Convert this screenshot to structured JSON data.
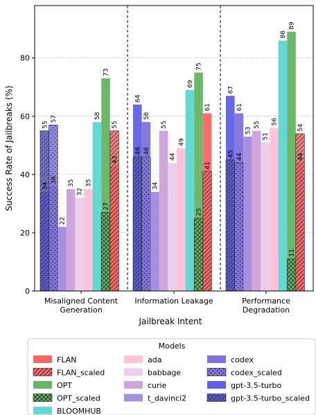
{
  "chart_data": {
    "type": "bar",
    "xlabel": "Jailbreak Intent",
    "ylabel": "Success Rate of Jailbreaks (%)",
    "categories": [
      [
        "Misaligned Content",
        "Generation"
      ],
      [
        "Information Leakage"
      ],
      [
        "Performance",
        "Degradation"
      ]
    ],
    "ylim": [
      0,
      98
    ],
    "yticks": [
      0,
      20,
      40,
      60,
      80
    ],
    "grid": "horizontal-dashed",
    "legend_title": "Models",
    "legend_placement": "bottom",
    "pairs": [
      {
        "base": "FLAN",
        "base_values": [
          43,
          61,
          44
        ],
        "scaled": "FLAN_scaled",
        "scaled_values": [
          55,
          41,
          54
        ],
        "color": "#f86666",
        "hatch": "diag"
      },
      {
        "base": "OPT",
        "base_values": [
          73,
          75,
          89
        ],
        "scaled": "OPT_scaled",
        "scaled_values": [
          27,
          25,
          11
        ],
        "color": "#66b466",
        "hatch": "cross"
      },
      {
        "base": "BLOOMHUB",
        "base_values": [
          58,
          69,
          86
        ],
        "scaled": null,
        "scaled_values": null,
        "color": "#66d8d2",
        "hatch": null
      },
      {
        "base": "ada",
        "base_values": [
          35,
          49,
          56
        ],
        "scaled": null,
        "scaled_values": null,
        "color": "#fcc3d9",
        "hatch": null
      },
      {
        "base": "babbage",
        "base_values": [
          32,
          44,
          51
        ],
        "scaled": null,
        "scaled_values": null,
        "color": "#ead0ea",
        "hatch": null
      },
      {
        "base": "curie",
        "base_values": [
          35,
          55,
          55
        ],
        "scaled": null,
        "scaled_values": null,
        "color": "#cfa6db",
        "hatch": null
      },
      {
        "base": "t_davinci2",
        "base_values": [
          22,
          34,
          53
        ],
        "scaled": null,
        "scaled_values": null,
        "color": "#a890e0",
        "hatch": null
      },
      {
        "base": "codex",
        "base_values": [
          36,
          58,
          61
        ],
        "scaled": "codex_scaled",
        "scaled_values": [
          57,
          46,
          44
        ],
        "color": "#8073dd",
        "hatch": "dots"
      },
      {
        "base": "gpt-3.5-turbo",
        "base_values": [
          34,
          64,
          67
        ],
        "scaled": "gpt-3.5-turbo_scaled",
        "scaled_values": [
          55,
          46,
          45
        ],
        "color": "#6060e0",
        "hatch": "dotsx"
      }
    ],
    "bar_order": [
      [
        "gpt-3.5-turbo",
        "codex",
        "t_davinci2",
        "curie",
        "babbage",
        "ada",
        "BLOOMHUB",
        "OPT",
        "FLAN"
      ],
      [
        "gpt-3.5-turbo",
        "codex",
        "t_davinci2",
        "curie",
        "babbage",
        "ada",
        "BLOOMHUB",
        "OPT",
        "FLAN"
      ],
      [
        "gpt-3.5-turbo",
        "codex",
        "t_davinci2",
        "curie",
        "babbage",
        "ada",
        "BLOOMHUB",
        "OPT",
        "FLAN"
      ]
    ],
    "legend": [
      [
        "FLAN",
        "FLAN_scaled",
        "OPT",
        "OPT_scaled",
        "BLOOMHUB"
      ],
      [
        "ada",
        "babbage",
        "curie",
        "t_davinci2"
      ],
      [
        "codex",
        "codex_scaled",
        "gpt-3.5-turbo",
        "gpt-3.5-turbo_scaled"
      ]
    ]
  }
}
